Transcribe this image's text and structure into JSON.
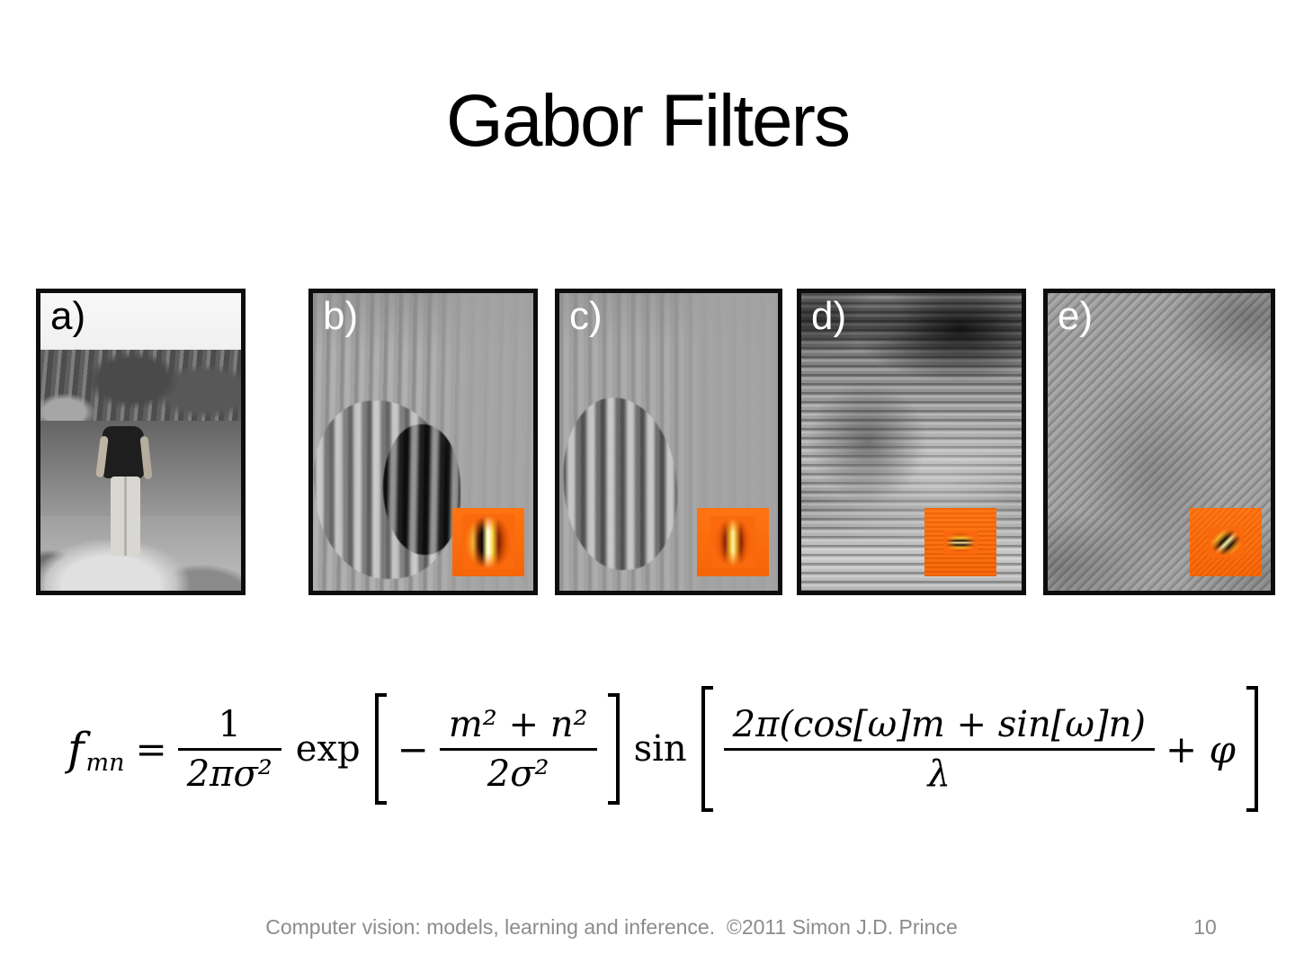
{
  "slide": {
    "title": "Gabor Filters",
    "background_color": "#ffffff"
  },
  "panels": [
    {
      "label": "a)",
      "label_color": "#000000",
      "content": "original grayscale photograph: person standing on rocks by a quarry lake"
    },
    {
      "label": "b)",
      "label_color": "#ffffff",
      "content": "gabor filter response: vertical orientation, coarse scale",
      "kernel": "vertical-coarse-gabor-kernel"
    },
    {
      "label": "c)",
      "label_color": "#ffffff",
      "content": "gabor filter response: vertical orientation, fine scale",
      "kernel": "vertical-fine-gabor-kernel"
    },
    {
      "label": "d)",
      "label_color": "#ffffff",
      "content": "gabor filter response: horizontal orientation",
      "kernel": "horizontal-gabor-kernel"
    },
    {
      "label": "e)",
      "label_color": "#ffffff",
      "content": "gabor filter response: diagonal orientation",
      "kernel": "diagonal-gabor-kernel"
    }
  ],
  "formula": {
    "lhs": "f",
    "lhs_sub": "mn",
    "equals": "=",
    "coef_num": "1",
    "coef_den": "2πσ²",
    "exp": "exp",
    "minus": "−",
    "gauss_num": "m² + n²",
    "gauss_den": "2σ²",
    "sin": "sin",
    "wave_num": "2π(cos[ω]m + sin[ω]n)",
    "wave_den": "λ",
    "phase": "+ φ"
  },
  "footer": {
    "credit": "Computer vision: models, learning and inference.  ©2011 Simon J.D. Prince",
    "page_number": "10"
  },
  "colors": {
    "inset_orange": "#fa690c",
    "panel_border": "#0d0d0d",
    "footer_gray": "#8c8c8c"
  }
}
